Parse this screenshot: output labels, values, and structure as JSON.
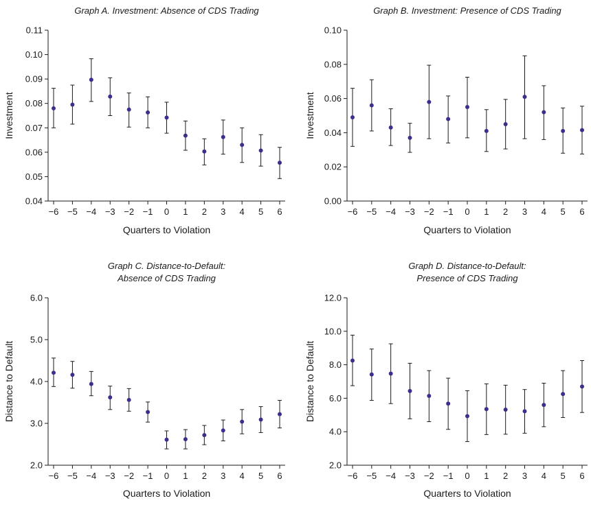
{
  "figure": {
    "background": "#ffffff",
    "marker_color": "#3b2e8c"
  },
  "chart_data": [
    {
      "type": "scatter",
      "title": "Graph A. Investment: Absence of CDS Trading",
      "title_lines": [
        "Graph A. Investment: Absence of CDS Trading"
      ],
      "xlabel": "Quarters to Violation",
      "ylabel": "Investment",
      "x": [
        -6,
        -5,
        -4,
        -3,
        -2,
        -1,
        0,
        1,
        2,
        3,
        4,
        5,
        6
      ],
      "x_tick_labels": [
        "−6",
        "−5",
        "−4",
        "−3",
        "−2",
        "−1",
        "0",
        "1",
        "2",
        "3",
        "4",
        "5",
        "6"
      ],
      "y": [
        0.078,
        0.0795,
        0.0897,
        0.0828,
        0.0775,
        0.0763,
        0.0742,
        0.0668,
        0.0603,
        0.0662,
        0.063,
        0.0607,
        0.0557
      ],
      "y_low": [
        0.07,
        0.0715,
        0.0808,
        0.075,
        0.0703,
        0.07,
        0.0678,
        0.0608,
        0.0548,
        0.0592,
        0.0558,
        0.0543,
        0.0492
      ],
      "y_high": [
        0.0862,
        0.0875,
        0.0983,
        0.0905,
        0.0843,
        0.0827,
        0.0805,
        0.0728,
        0.0655,
        0.0732,
        0.07,
        0.0672,
        0.062
      ],
      "ylim": [
        0.04,
        0.11
      ],
      "y_ticks": [
        0.04,
        0.05,
        0.06,
        0.07,
        0.08,
        0.09,
        0.1,
        0.11
      ],
      "y_tick_labels": [
        "0.04",
        "0.05",
        "0.06",
        "0.07",
        "0.08",
        "0.09",
        "0.10",
        "0.11"
      ],
      "grid": false,
      "legend": "none"
    },
    {
      "type": "scatter",
      "title": "Graph B. Investment: Presence of CDS Trading",
      "title_lines": [
        "Graph B. Investment: Presence of CDS Trading"
      ],
      "xlabel": "Quarters to Violation",
      "ylabel": "Investment",
      "x": [
        -6,
        -5,
        -4,
        -3,
        -2,
        -1,
        0,
        1,
        2,
        3,
        4,
        5,
        6
      ],
      "x_tick_labels": [
        "−6",
        "−5",
        "−4",
        "−3",
        "−2",
        "−1",
        "0",
        "1",
        "2",
        "3",
        "4",
        "5",
        "6"
      ],
      "y": [
        0.049,
        0.056,
        0.043,
        0.037,
        0.058,
        0.048,
        0.055,
        0.041,
        0.045,
        0.061,
        0.052,
        0.041,
        0.0415
      ],
      "y_low": [
        0.032,
        0.041,
        0.0325,
        0.0285,
        0.0365,
        0.034,
        0.037,
        0.029,
        0.0305,
        0.0365,
        0.036,
        0.028,
        0.0275
      ],
      "y_high": [
        0.066,
        0.071,
        0.054,
        0.0455,
        0.0795,
        0.0615,
        0.0725,
        0.0535,
        0.0595,
        0.085,
        0.0675,
        0.0545,
        0.0555
      ],
      "ylim": [
        0.0,
        0.1
      ],
      "y_ticks": [
        0.0,
        0.02,
        0.04,
        0.06,
        0.08,
        0.1
      ],
      "y_tick_labels": [
        "0.00",
        "0.02",
        "0.04",
        "0.06",
        "0.08",
        "0.10"
      ],
      "grid": false,
      "legend": "none"
    },
    {
      "type": "scatter",
      "title": "Graph C. Distance-to-Default: Absence of CDS Trading",
      "title_lines": [
        "Graph C. Distance-to-Default:",
        "Absence of CDS Trading"
      ],
      "xlabel": "Quarters to Violation",
      "ylabel": "Distance to Default",
      "x": [
        -6,
        -5,
        -4,
        -3,
        -2,
        -1,
        0,
        1,
        2,
        3,
        4,
        5,
        6
      ],
      "x_tick_labels": [
        "−6",
        "−5",
        "−4",
        "−3",
        "−2",
        "−1",
        "0",
        "1",
        "2",
        "3",
        "4",
        "5",
        "6"
      ],
      "y": [
        4.21,
        4.16,
        3.94,
        3.62,
        3.56,
        3.27,
        2.61,
        2.62,
        2.72,
        2.83,
        3.04,
        3.09,
        3.22
      ],
      "y_low": [
        3.88,
        3.84,
        3.66,
        3.33,
        3.29,
        3.03,
        2.39,
        2.39,
        2.49,
        2.58,
        2.75,
        2.78,
        2.89
      ],
      "y_high": [
        4.56,
        4.48,
        4.24,
        3.89,
        3.83,
        3.51,
        2.82,
        2.85,
        2.95,
        3.08,
        3.33,
        3.4,
        3.55
      ],
      "ylim": [
        2.0,
        6.0
      ],
      "y_ticks": [
        2.0,
        3.0,
        4.0,
        5.0,
        6.0
      ],
      "y_tick_labels": [
        "2.0",
        "3.0",
        "4.0",
        "5.0",
        "6.0"
      ],
      "grid": false,
      "legend": "none"
    },
    {
      "type": "scatter",
      "title": "Graph D. Distance-to-Default: Presence of CDS Trading",
      "title_lines": [
        "Graph D. Distance-to-Default:",
        "Presence of CDS Trading"
      ],
      "xlabel": "Quarters to Violation",
      "ylabel": "Distance to Default",
      "x": [
        -6,
        -5,
        -4,
        -3,
        -2,
        -1,
        0,
        1,
        2,
        3,
        4,
        5,
        6
      ],
      "x_tick_labels": [
        "−6",
        "−5",
        "−4",
        "−3",
        "−2",
        "−1",
        "0",
        "1",
        "2",
        "3",
        "4",
        "5",
        "6"
      ],
      "y": [
        8.25,
        7.42,
        7.47,
        6.43,
        6.14,
        5.68,
        4.93,
        5.35,
        5.32,
        5.22,
        5.6,
        6.25,
        6.7
      ],
      "y_low": [
        6.75,
        5.87,
        5.68,
        4.77,
        4.6,
        4.14,
        3.41,
        3.83,
        3.85,
        3.91,
        4.3,
        4.85,
        5.15
      ],
      "y_high": [
        9.77,
        8.94,
        9.25,
        8.09,
        7.65,
        7.2,
        6.45,
        6.86,
        6.78,
        6.52,
        6.9,
        7.65,
        8.25
      ],
      "ylim": [
        2.0,
        12.0
      ],
      "y_ticks": [
        2.0,
        4.0,
        6.0,
        8.0,
        10.0,
        12.0
      ],
      "y_tick_labels": [
        "2.0",
        "4.0",
        "6.0",
        "8.0",
        "10.0",
        "12.0"
      ],
      "grid": false,
      "legend": "none"
    }
  ]
}
